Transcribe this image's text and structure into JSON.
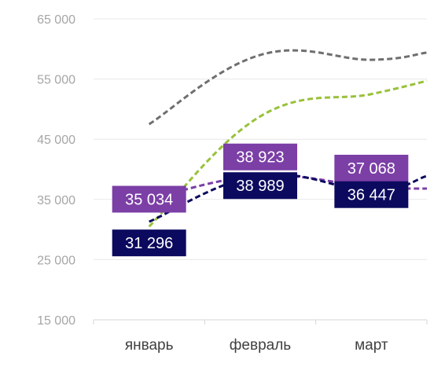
{
  "chart_data": {
    "type": "line",
    "categories": [
      "январь",
      "февраль",
      "март"
    ],
    "ylim": [
      15000,
      65000
    ],
    "yticks": [
      15000,
      25000,
      35000,
      45000,
      55000,
      65000
    ],
    "ytick_labels": [
      "15 000",
      "25 000",
      "35 000",
      "45 000",
      "55 000",
      "65 000"
    ],
    "grid": true,
    "series": [
      {
        "key": "gray",
        "color": "#6f6f6f",
        "dashed": true,
        "values": [
          47500,
          59000,
          58200
        ],
        "end_value": 59400
      },
      {
        "key": "green",
        "color": "#99c13a",
        "dashed": true,
        "values": [
          30500,
          48800,
          52500
        ],
        "end_value": 54700
      },
      {
        "key": "purple",
        "color": "#7b3fa6",
        "dashed": true,
        "values": [
          35034,
          38923,
          37068
        ],
        "end_value": 36800,
        "labels": [
          "35 034",
          "38 923",
          "37 068"
        ]
      },
      {
        "key": "navy",
        "color": "#0c0a5e",
        "dashed": true,
        "values": [
          31296,
          38989,
          36447
        ],
        "end_value": 38900,
        "labels": [
          "31 296",
          "38 989",
          "36 447"
        ]
      }
    ]
  }
}
